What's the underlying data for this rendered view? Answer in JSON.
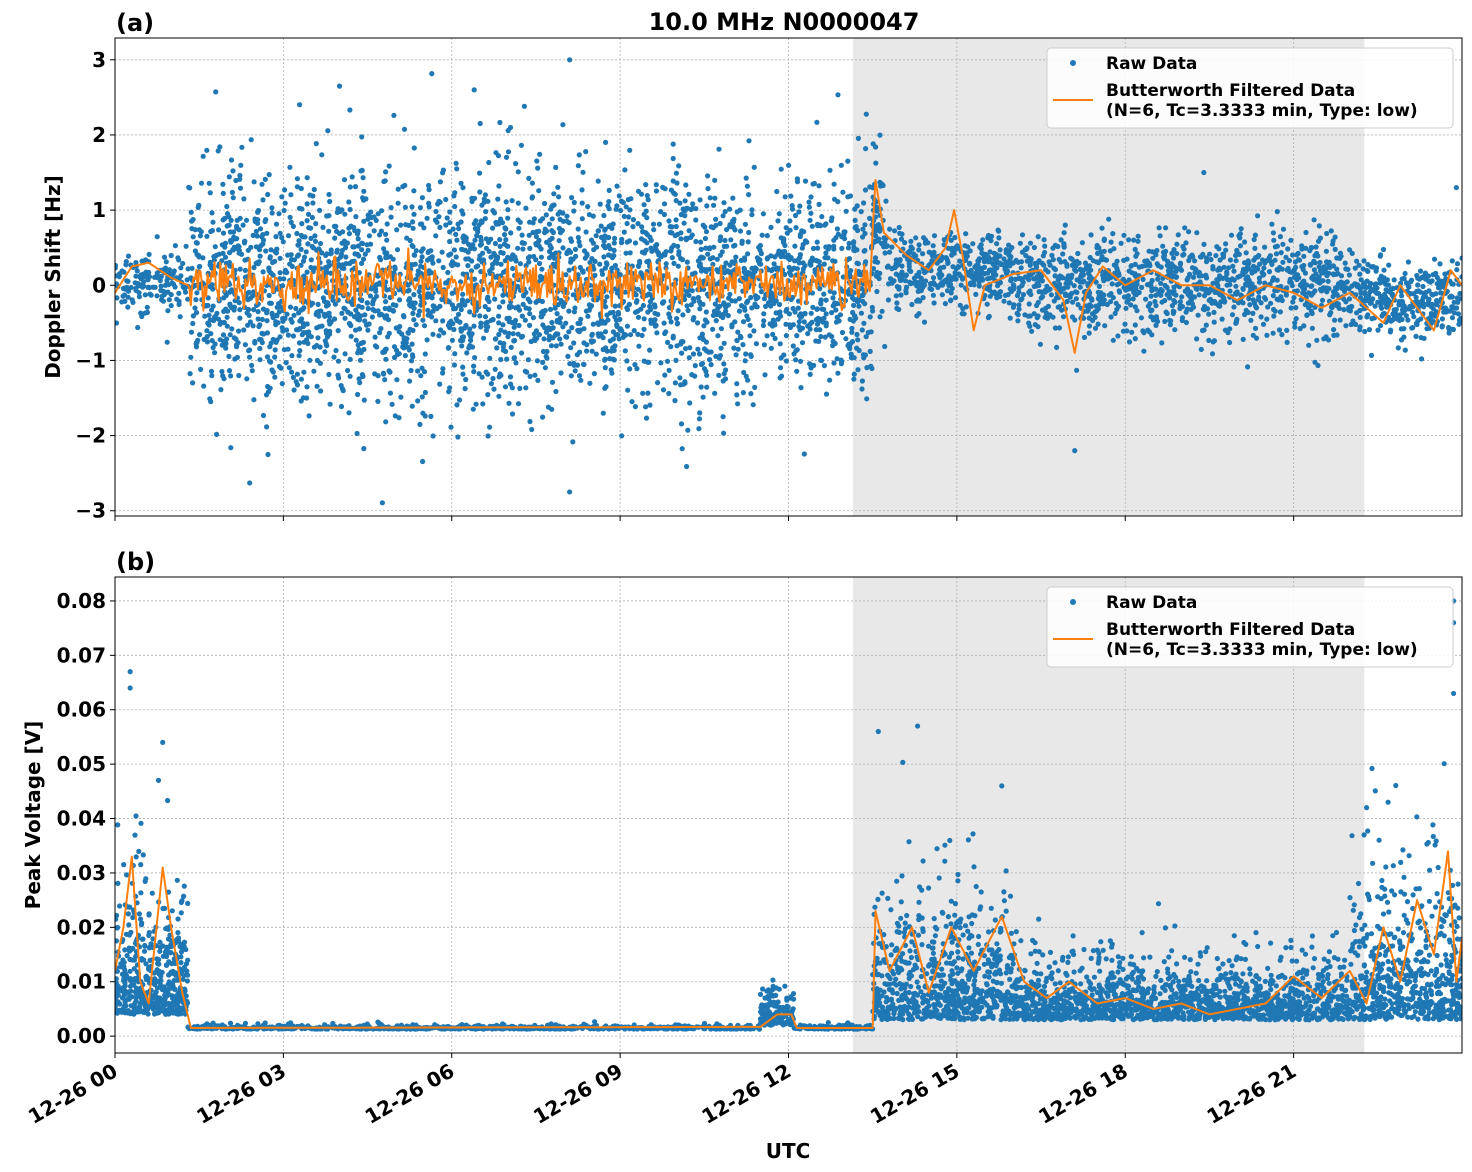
{
  "chart_data": {
    "type": "scatter",
    "title": "10.0 MHz N0000047",
    "xlabel": "UTC",
    "x_unit": "hours since 12-26 00",
    "xlim": [
      0,
      24
    ],
    "x_ticks": [
      {
        "value": 0,
        "label": "12-26 00"
      },
      {
        "value": 3,
        "label": "12-26 03"
      },
      {
        "value": 6,
        "label": "12-26 06"
      },
      {
        "value": 9,
        "label": "12-26 09"
      },
      {
        "value": 12,
        "label": "12-26 12"
      },
      {
        "value": 15,
        "label": "12-26 15"
      },
      {
        "value": 18,
        "label": "12-26 18"
      },
      {
        "value": 21,
        "label": "12-26 21"
      }
    ],
    "shaded_span": [
      13.15,
      22.26
    ],
    "grid": true,
    "legend": {
      "placement": "top-right",
      "entries": [
        "Raw Data",
        "Butterworth Filtered Data",
        "(N=6, Tc=3.3333 min, Type: low)"
      ]
    },
    "colors": {
      "raw": "#1f77b4",
      "filtered": "#ff7f0e",
      "shade": "#e8e8e8"
    },
    "panels": [
      {
        "label": "(a)",
        "ylabel": "Doppler Shift [Hz]",
        "ylim": [
          -3.07,
          3.29
        ],
        "y_ticks": [
          {
            "value": 3,
            "label": "3"
          },
          {
            "value": 2,
            "label": "2"
          },
          {
            "value": 1,
            "label": "1"
          },
          {
            "value": 0,
            "label": "0"
          },
          {
            "value": -1,
            "label": "−1"
          },
          {
            "value": -2,
            "label": "−2"
          },
          {
            "value": -3,
            "label": "−3"
          }
        ],
        "raw_segments": [
          {
            "t0": 0,
            "t1": 1.3,
            "center": 0.05,
            "sigma": 0.2,
            "n": 150
          },
          {
            "t0": 1.3,
            "t1": 11.4,
            "center": 0.0,
            "sigma": 0.75,
            "n": 2600
          },
          {
            "t0": 11.4,
            "t1": 11.8,
            "center": 0.0,
            "sigma": 0.45,
            "n": 80
          },
          {
            "t0": 11.8,
            "t1": 13.5,
            "center": 0.0,
            "sigma": 0.7,
            "n": 420
          },
          {
            "t0": 13.5,
            "t1": 13.75,
            "center": 0.7,
            "sigma": 0.5,
            "n": 60
          },
          {
            "t0": 13.75,
            "t1": 16,
            "center": 0.2,
            "sigma": 0.25,
            "n": 400
          },
          {
            "t0": 16,
            "t1": 22,
            "center": 0.0,
            "sigma": 0.33,
            "n": 1100
          },
          {
            "t0": 22,
            "t1": 24,
            "center": -0.2,
            "sigma": 0.25,
            "n": 350
          }
        ],
        "outliers": [
          [
            8.1,
            3.0
          ],
          [
            4.0,
            2.65
          ],
          [
            6.4,
            2.6
          ],
          [
            2.4,
            -2.63
          ],
          [
            8.1,
            -2.75
          ],
          [
            17.1,
            -2.2
          ],
          [
            19.4,
            1.5
          ],
          [
            23.9,
            1.3
          ]
        ],
        "filtered": {
          "jitter_until": 13.5,
          "jitter": 0.15,
          "points": [
            [
              0,
              -0.1
            ],
            [
              0.3,
              0.25
            ],
            [
              0.6,
              0.3
            ],
            [
              1.0,
              0.1
            ],
            [
              1.3,
              0.0
            ],
            [
              6,
              0.0
            ],
            [
              11.4,
              0.05
            ],
            [
              12.0,
              0.0
            ],
            [
              13.0,
              0.0
            ],
            [
              13.45,
              0.1
            ],
            [
              13.55,
              1.4
            ],
            [
              13.7,
              0.7
            ],
            [
              14.1,
              0.4
            ],
            [
              14.5,
              0.2
            ],
            [
              14.8,
              0.5
            ],
            [
              14.95,
              1.0
            ],
            [
              15.1,
              0.4
            ],
            [
              15.3,
              -0.6
            ],
            [
              15.5,
              0.0
            ],
            [
              16.0,
              0.15
            ],
            [
              16.5,
              0.2
            ],
            [
              16.9,
              -0.2
            ],
            [
              17.1,
              -0.9
            ],
            [
              17.3,
              -0.1
            ],
            [
              17.6,
              0.25
            ],
            [
              18.0,
              0.0
            ],
            [
              18.5,
              0.2
            ],
            [
              19.0,
              0.0
            ],
            [
              19.5,
              0.0
            ],
            [
              20.0,
              -0.2
            ],
            [
              20.5,
              0.0
            ],
            [
              21.0,
              -0.1
            ],
            [
              21.5,
              -0.3
            ],
            [
              22.0,
              -0.1
            ],
            [
              22.3,
              -0.3
            ],
            [
              22.6,
              -0.5
            ],
            [
              22.9,
              0.0
            ],
            [
              23.2,
              -0.3
            ],
            [
              23.5,
              -0.6
            ],
            [
              23.8,
              0.2
            ],
            [
              24,
              0.0
            ]
          ]
        }
      },
      {
        "label": "(b)",
        "ylabel": "Peak Voltage [V]",
        "ylim": [
          -0.0031,
          0.0844
        ],
        "y_ticks": [
          {
            "value": 0,
            "label": "0.00"
          },
          {
            "value": 0.01,
            "label": "0.01"
          },
          {
            "value": 0.02,
            "label": "0.02"
          },
          {
            "value": 0.03,
            "label": "0.03"
          },
          {
            "value": 0.04,
            "label": "0.04"
          },
          {
            "value": 0.05,
            "label": "0.05"
          },
          {
            "value": 0.06,
            "label": "0.06"
          },
          {
            "value": 0.07,
            "label": "0.07"
          },
          {
            "value": 0.08,
            "label": "0.08"
          }
        ],
        "raw_segments": [
          {
            "t0": 0,
            "t1": 1.3,
            "center": 0.004,
            "sigma": 0.012,
            "n": 500
          },
          {
            "t0": 1.3,
            "t1": 11.5,
            "center": 0.0013,
            "sigma": 0.0004,
            "n": 700
          },
          {
            "t0": 11.5,
            "t1": 12.1,
            "center": 0.002,
            "sigma": 0.004,
            "n": 150
          },
          {
            "t0": 12.1,
            "t1": 13.5,
            "center": 0.0013,
            "sigma": 0.0004,
            "n": 120
          },
          {
            "t0": 13.5,
            "t1": 16,
            "center": 0.003,
            "sigma": 0.012,
            "n": 700
          },
          {
            "t0": 16,
            "t1": 22,
            "center": 0.003,
            "sigma": 0.006,
            "n": 1500
          },
          {
            "t0": 22,
            "t1": 24,
            "center": 0.003,
            "sigma": 0.014,
            "n": 600
          }
        ],
        "outliers": [
          [
            0.27,
            0.067
          ],
          [
            0.27,
            0.064
          ],
          [
            0.85,
            0.054
          ],
          [
            13.6,
            0.056
          ],
          [
            14.3,
            0.057
          ],
          [
            15.8,
            0.046
          ],
          [
            23.85,
            0.08
          ],
          [
            23.85,
            0.076
          ],
          [
            23.85,
            0.063
          ],
          [
            22.3,
            0.042
          ]
        ],
        "filtered": {
          "jitter_until": 0,
          "jitter": 0,
          "points": [
            [
              0,
              0.012
            ],
            [
              0.15,
              0.02
            ],
            [
              0.3,
              0.033
            ],
            [
              0.45,
              0.01
            ],
            [
              0.6,
              0.006
            ],
            [
              0.85,
              0.031
            ],
            [
              1.0,
              0.02
            ],
            [
              1.2,
              0.008
            ],
            [
              1.35,
              0.0015
            ],
            [
              11.5,
              0.0017
            ],
            [
              11.8,
              0.004
            ],
            [
              12.05,
              0.004
            ],
            [
              12.15,
              0.0015
            ],
            [
              13.5,
              0.0015
            ],
            [
              13.55,
              0.023
            ],
            [
              13.8,
              0.012
            ],
            [
              14.2,
              0.02
            ],
            [
              14.5,
              0.008
            ],
            [
              14.9,
              0.02
            ],
            [
              15.3,
              0.012
            ],
            [
              15.8,
              0.022
            ],
            [
              16.2,
              0.01
            ],
            [
              16.6,
              0.007
            ],
            [
              17.0,
              0.01
            ],
            [
              17.5,
              0.006
            ],
            [
              18.0,
              0.007
            ],
            [
              18.5,
              0.005
            ],
            [
              19.0,
              0.006
            ],
            [
              19.5,
              0.004
            ],
            [
              20.0,
              0.005
            ],
            [
              20.5,
              0.006
            ],
            [
              21.0,
              0.011
            ],
            [
              21.5,
              0.007
            ],
            [
              22.0,
              0.012
            ],
            [
              22.3,
              0.006
            ],
            [
              22.6,
              0.02
            ],
            [
              22.9,
              0.01
            ],
            [
              23.2,
              0.025
            ],
            [
              23.5,
              0.015
            ],
            [
              23.75,
              0.034
            ],
            [
              23.9,
              0.01
            ],
            [
              24,
              0.018
            ]
          ]
        }
      }
    ]
  }
}
